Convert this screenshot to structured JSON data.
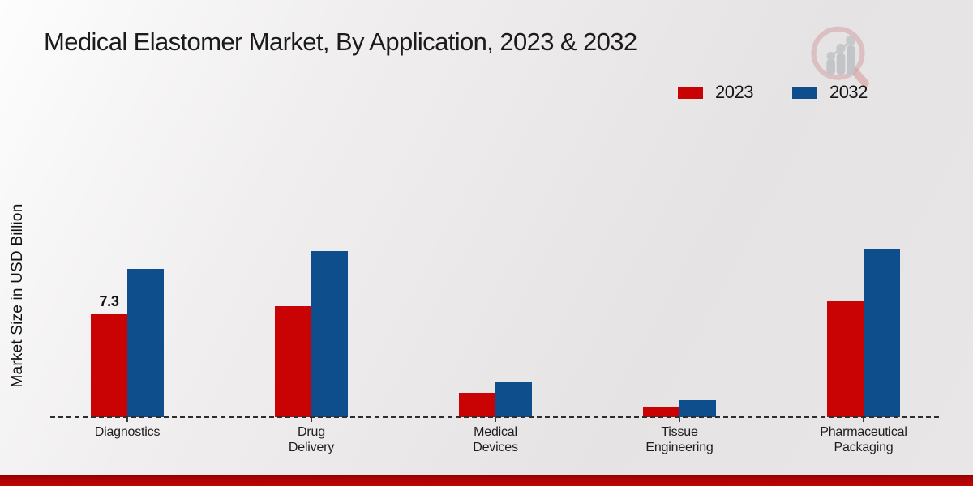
{
  "title": "Medical Elastomer Market, By Application, 2023 & 2032",
  "y_axis_label": "Market Size in USD Billion",
  "watermark_icon": "bar-chart-magnifier-logo",
  "accent": {
    "bottom_bar_color": "#b30404",
    "background": "#e9e7e7"
  },
  "chart_data": {
    "type": "bar",
    "title": "Medical Elastomer Market, By Application, 2023 & 2032",
    "xlabel": "",
    "ylabel": "Market Size in USD Billion",
    "categories": [
      "Diagnostics",
      "Drug Delivery",
      "Medical Devices",
      "Tissue Engineering",
      "Pharmaceutical Packaging"
    ],
    "series": [
      {
        "name": "2023",
        "color": "#c90303",
        "values": [
          7.3,
          7.9,
          1.7,
          0.7,
          8.2
        ]
      },
      {
        "name": "2032",
        "color": "#0f4e8c",
        "values": [
          10.5,
          11.8,
          2.5,
          1.2,
          11.9
        ]
      }
    ],
    "annotations": [
      {
        "category": "Diagnostics",
        "series": "2023",
        "text": "7.3"
      }
    ],
    "ylim": [
      0,
      12.5
    ],
    "grid": false,
    "axis_line_style": "dashed-baseline",
    "legend_position": "top-right"
  }
}
